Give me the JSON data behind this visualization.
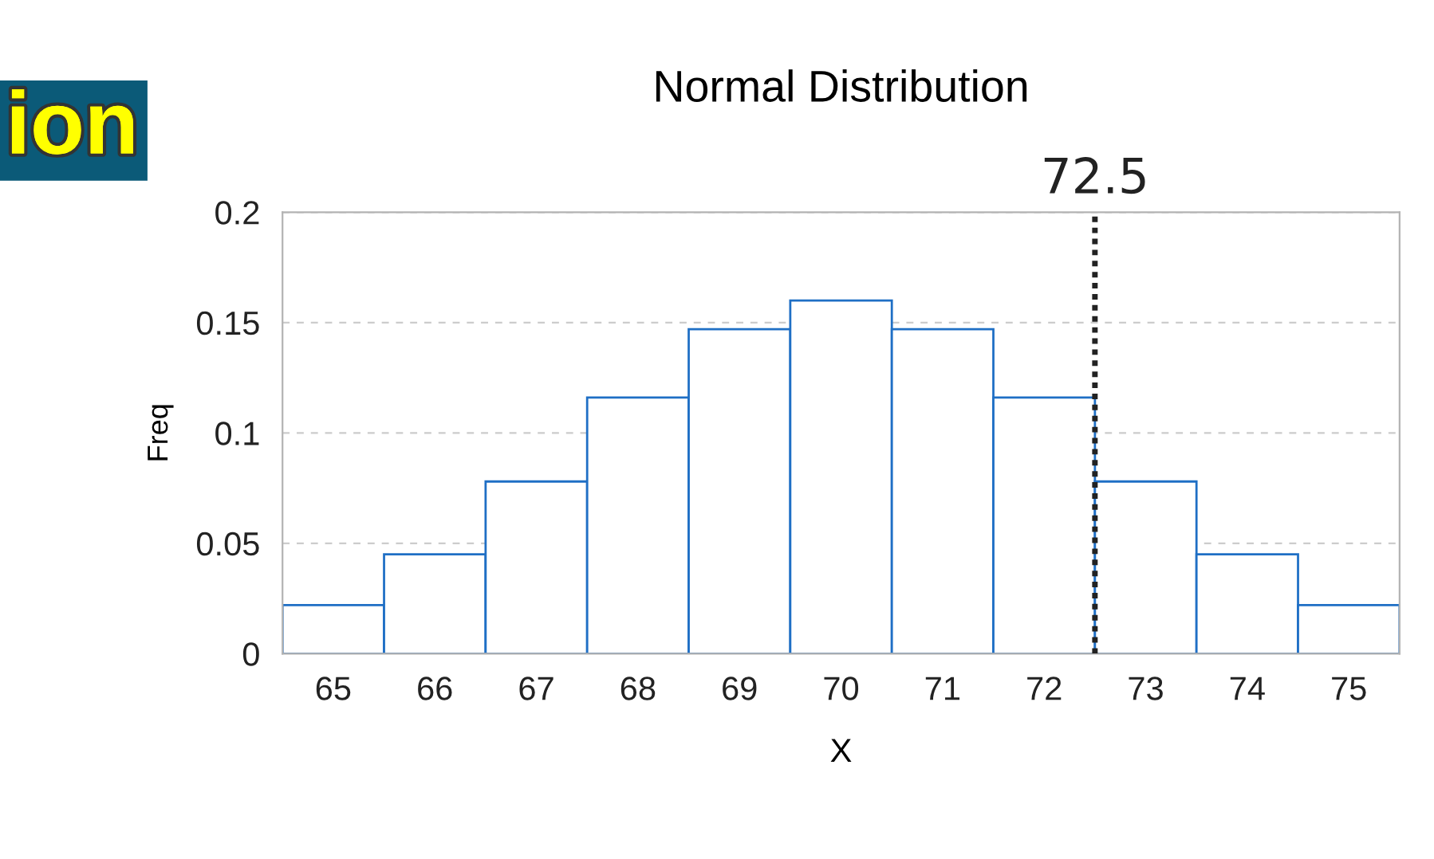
{
  "chart_data": {
    "type": "histogram",
    "title": "Normal Distribution",
    "xlabel": "X",
    "ylabel": "Freq",
    "bins": [
      64.5,
      65.5,
      66.5,
      67.5,
      68.5,
      69.5,
      70.5,
      71.5,
      72.5,
      73.5,
      74.5,
      75.5
    ],
    "values": [
      0.022,
      0.045,
      0.078,
      0.116,
      0.147,
      0.16,
      0.147,
      0.116,
      0.078,
      0.045,
      0.022
    ],
    "color": "#1f6fc5",
    "xlim": [
      64.5,
      75.5
    ],
    "xticks": [
      65,
      66,
      67,
      68,
      69,
      70,
      71,
      72,
      73,
      74,
      75
    ],
    "ylim": [
      0,
      0.2
    ],
    "yticks": [
      0,
      0.05,
      0.1,
      0.15,
      0.2
    ],
    "grid": "y",
    "ref_lines": [
      {
        "axis": "x",
        "value": 72.5,
        "label": "72.5",
        "line_style": "dotted",
        "color": "#222222"
      }
    ],
    "annotations": [
      "ion"
    ]
  }
}
